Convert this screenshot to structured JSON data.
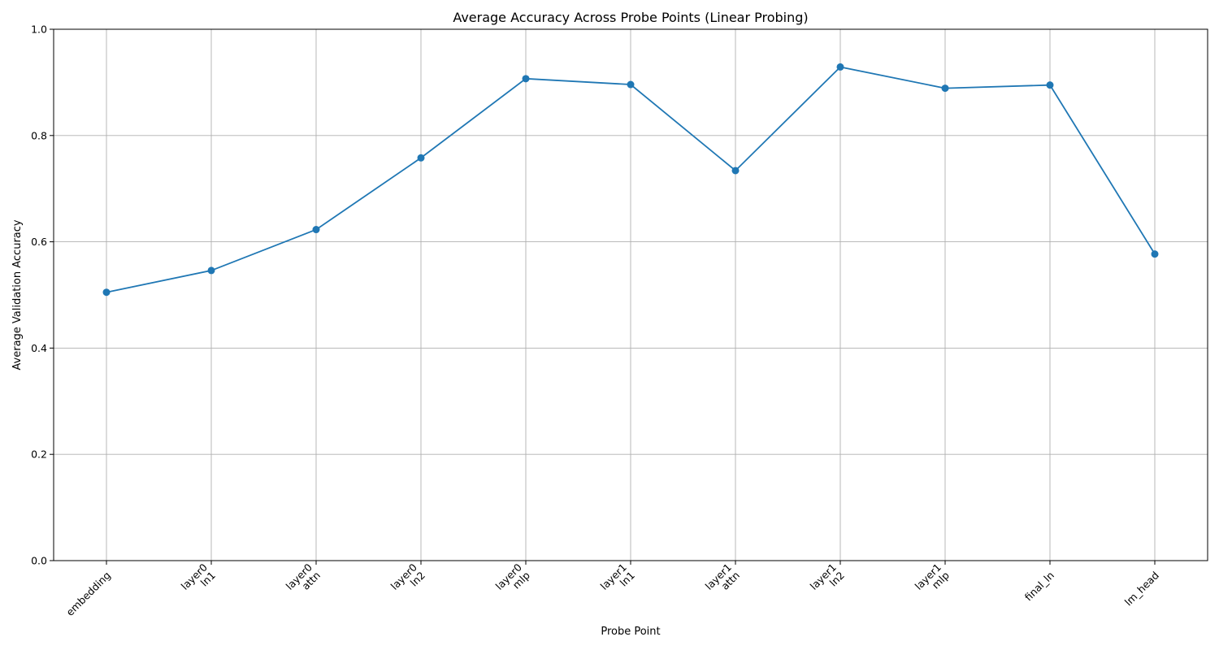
{
  "chart_data": {
    "type": "line",
    "title": "Average Accuracy Across Probe Points (Linear Probing)",
    "xlabel": "Probe Point",
    "ylabel": "Average Validation Accuracy",
    "ylim": [
      0,
      1.0
    ],
    "yticks": [
      "0.0",
      "0.2",
      "0.4",
      "0.6",
      "0.8",
      "1.0"
    ],
    "grid": true,
    "marker": "circle",
    "color": "#1f77b4",
    "categories": [
      "embedding",
      "layer0\nln1",
      "layer0\nattn",
      "layer0\nln2",
      "layer0\nmlp",
      "layer1\nln1",
      "layer1\nattn",
      "layer1\nln2",
      "layer1\nmlp",
      "final_ln",
      "lm_head"
    ],
    "values": [
      0.505,
      0.546,
      0.623,
      0.758,
      0.907,
      0.896,
      0.734,
      0.929,
      0.889,
      0.895,
      0.577
    ]
  }
}
